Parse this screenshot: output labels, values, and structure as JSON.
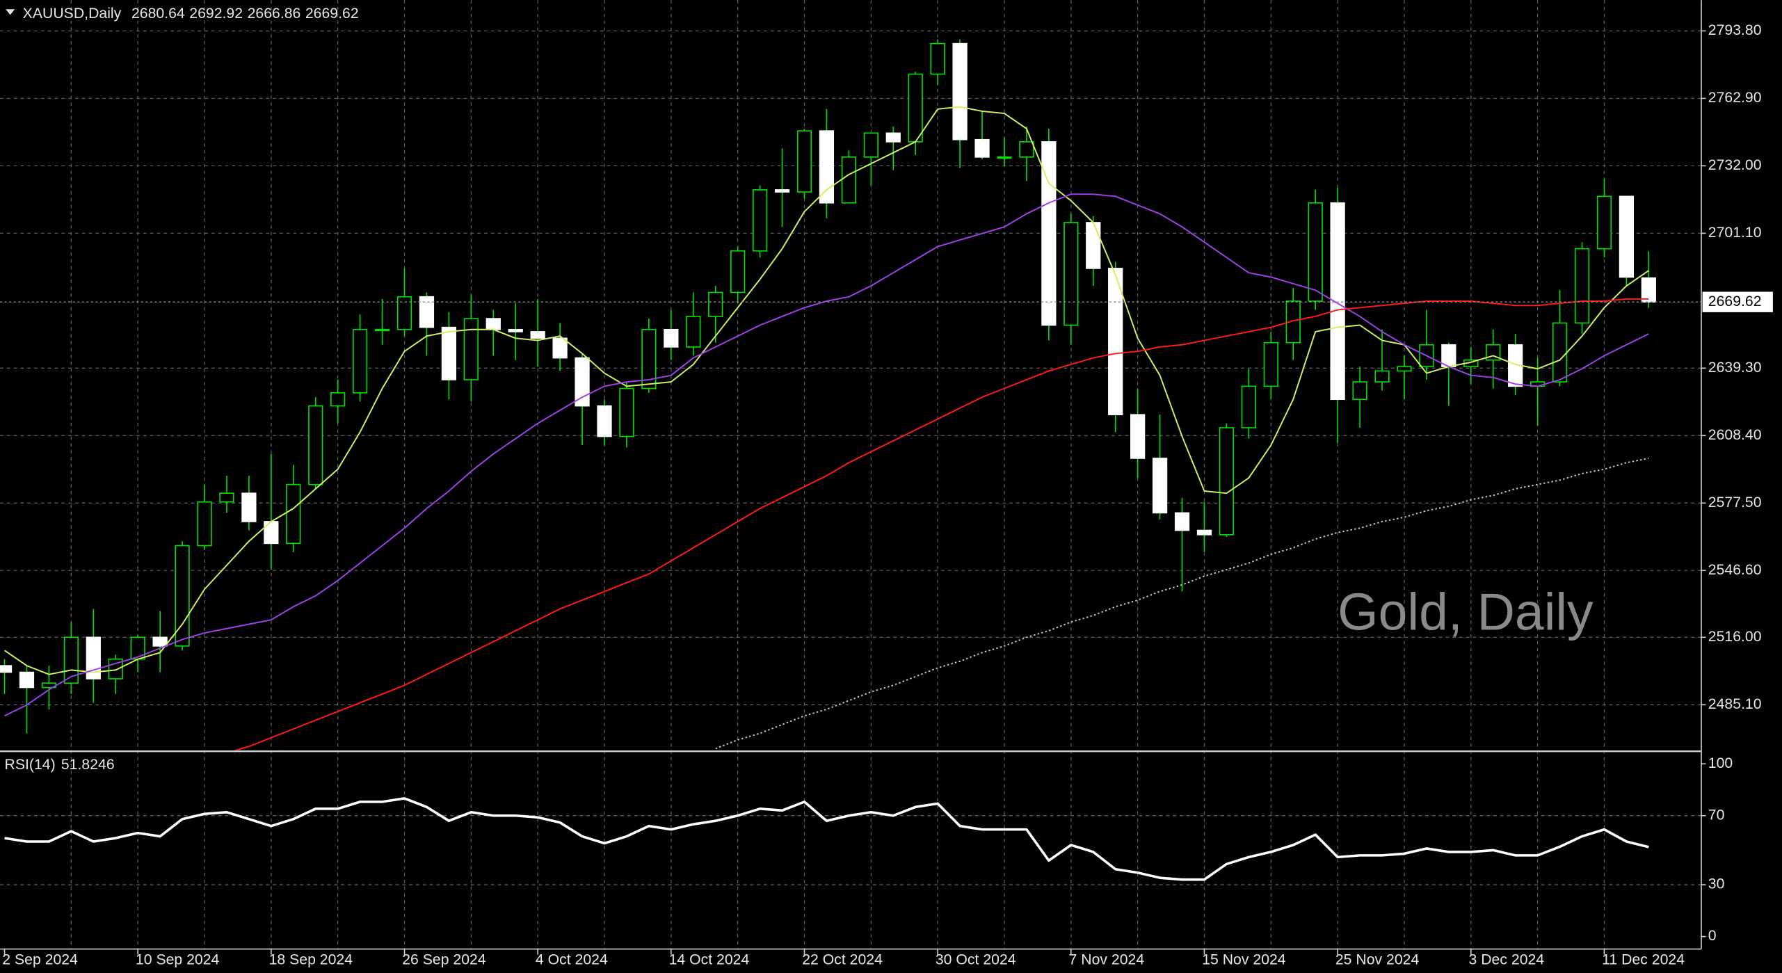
{
  "chart_data": [
    {
      "type": "candlestick",
      "symbol": "XAUUSD,Daily",
      "header_values": [
        2680.64,
        2692.92,
        2666.86,
        2669.62
      ],
      "watermark": "Gold, Daily",
      "categories": [
        "2 Sep 2024",
        null,
        null,
        null,
        null,
        null,
        "10 Sep 2024",
        null,
        null,
        null,
        null,
        null,
        "18 Sep 2024",
        null,
        null,
        null,
        null,
        null,
        "26 Sep 2024",
        null,
        null,
        null,
        null,
        null,
        "4 Oct 2024",
        null,
        null,
        null,
        null,
        null,
        "14 Oct 2024",
        null,
        null,
        null,
        null,
        null,
        "22 Oct 2024",
        null,
        null,
        null,
        null,
        null,
        "30 Oct 2024",
        null,
        null,
        null,
        null,
        null,
        "7 Nov 2024",
        null,
        null,
        null,
        null,
        null,
        "15 Nov 2024",
        null,
        null,
        null,
        null,
        null,
        "25 Nov 2024",
        null,
        null,
        null,
        null,
        null,
        "3 Dec 2024",
        null,
        null,
        null,
        null,
        null,
        "11 Dec 2024",
        null,
        null
      ],
      "open": [
        2503,
        2500,
        2493,
        2495,
        2516,
        2497,
        2506,
        2516,
        2512,
        2558,
        2578,
        2582,
        2569,
        2559,
        2586,
        2622,
        2628,
        2657,
        2657,
        2672,
        2658,
        2634,
        2662,
        2657,
        2656,
        2653,
        2644,
        2622,
        2608,
        2630,
        2657,
        2649,
        2663,
        2674,
        2693,
        2721,
        2720,
        2748,
        2715,
        2736,
        2747,
        2743,
        2774,
        2788,
        2744,
        2736,
        2736,
        2743,
        2659,
        2706,
        2685,
        2618,
        2598,
        2573,
        2565,
        2563,
        2612,
        2631,
        2651,
        2670,
        2715,
        2625,
        2633,
        2638,
        2640,
        2650,
        2640,
        2643,
        2650,
        2631,
        2633,
        2660,
        2694,
        2718,
        2680.64
      ],
      "high": [
        2506,
        2503,
        2503,
        2523,
        2529,
        2508,
        2517,
        2528,
        2560,
        2586,
        2590,
        2590,
        2600,
        2595,
        2626,
        2634,
        2664,
        2671,
        2685,
        2674,
        2665,
        2673,
        2666,
        2669,
        2671,
        2660,
        2646,
        2625,
        2633,
        2662,
        2666,
        2674,
        2677,
        2695,
        2723,
        2740,
        2749,
        2758,
        2739,
        2747,
        2750,
        2775,
        2790,
        2790,
        2757,
        2745,
        2750,
        2749,
        2710,
        2709,
        2688,
        2630,
        2618,
        2580,
        2578,
        2614,
        2639,
        2656,
        2676,
        2721,
        2722,
        2640,
        2657,
        2645,
        2666,
        2651,
        2649,
        2657,
        2655,
        2644,
        2675,
        2697,
        2726,
        2718,
        2692.92
      ],
      "low": [
        2490,
        2472,
        2483,
        2490,
        2486,
        2490,
        2500,
        2500,
        2510,
        2556,
        2573,
        2565,
        2547,
        2555,
        2584,
        2614,
        2624,
        2650,
        2654,
        2645,
        2625,
        2624,
        2645,
        2643,
        2640,
        2638,
        2604,
        2604,
        2603,
        2628,
        2643,
        2645,
        2651,
        2669,
        2690,
        2704,
        2717,
        2708,
        2715,
        2723,
        2730,
        2737,
        2769,
        2731,
        2735,
        2732,
        2725,
        2652,
        2650,
        2677,
        2610,
        2589,
        2570,
        2537,
        2555,
        2562,
        2607,
        2625,
        2643,
        2666,
        2605,
        2612,
        2629,
        2625,
        2634,
        2622,
        2632,
        2630,
        2627,
        2613,
        2631,
        2655,
        2690,
        2677,
        2666.86
      ],
      "close": [
        2500,
        2493,
        2495,
        2516,
        2497,
        2506,
        2516,
        2512,
        2558,
        2578,
        2582,
        2569,
        2559,
        2586,
        2622,
        2628,
        2657,
        2657,
        2672,
        2658,
        2634,
        2662,
        2657,
        2656,
        2653,
        2644,
        2622,
        2608,
        2630,
        2657,
        2649,
        2663,
        2674,
        2693,
        2721,
        2720,
        2748,
        2715,
        2736,
        2747,
        2743,
        2774,
        2788,
        2744,
        2736,
        2736,
        2743,
        2659,
        2706,
        2685,
        2618,
        2598,
        2573,
        2565,
        2563,
        2612,
        2631,
        2651,
        2670,
        2715,
        2625,
        2633,
        2638,
        2640,
        2650,
        2640,
        2643,
        2650,
        2631,
        2633,
        2660,
        2694,
        2718,
        2681,
        2669.62
      ],
      "up_color": "#00e000",
      "up_fill": "#000000",
      "down_fill": "#ffffff",
      "series": [
        {
          "color": "#d2f060",
          "style": "solid",
          "values": [
            2510,
            2503,
            2499,
            2501,
            2500,
            2501,
            2506,
            2509,
            2522,
            2538,
            2549,
            2560,
            2569,
            2575,
            2584,
            2593,
            2610,
            2630,
            2647,
            2654,
            2656,
            2657,
            2657,
            2653,
            2652,
            2654,
            2646,
            2637,
            2631,
            2632,
            2633,
            2641,
            2654,
            2667,
            2680,
            2694,
            2711,
            2721,
            2728,
            2733,
            2738,
            2743,
            2758,
            2759,
            2757,
            2756,
            2749,
            2724,
            2716,
            2706,
            2682,
            2653,
            2636,
            2608,
            2583,
            2582,
            2589,
            2604,
            2625,
            2656,
            2658,
            2659,
            2652,
            2650,
            2637,
            2640,
            2642,
            2645,
            2641,
            2639,
            2643,
            2654,
            2667,
            2677,
            2684
          ]
        },
        {
          "color": "#a040e8",
          "style": "solid",
          "values": [
            2480,
            2485,
            2492,
            2498,
            2501,
            2504,
            2507,
            2511,
            2515,
            2518,
            2520,
            2522,
            2524,
            2530,
            2535,
            2542,
            2550,
            2558,
            2566,
            2575,
            2583,
            2592,
            2600,
            2607,
            2614,
            2620,
            2626,
            2631,
            2633,
            2634,
            2636,
            2644,
            2649,
            2654,
            2659,
            2663,
            2667,
            2670,
            2672,
            2677,
            2683,
            2689,
            2695,
            2698,
            2701,
            2704,
            2710,
            2715,
            2719,
            2719,
            2718,
            2714,
            2710,
            2704,
            2697,
            2690,
            2683,
            2681,
            2678,
            2675,
            2669,
            2663,
            2656,
            2650,
            2645,
            2640,
            2636,
            2635,
            2632,
            2631,
            2634,
            2639,
            2645,
            2650,
            2655
          ]
        },
        {
          "color": "#ff1a1a",
          "style": "solid",
          "values": [
            null,
            null,
            null,
            null,
            null,
            null,
            null,
            null,
            null,
            null,
            2463,
            2466,
            2470,
            2474,
            2478,
            2482,
            2486,
            2490,
            2494,
            2499,
            2504,
            2509,
            2514,
            2519,
            2524,
            2529,
            2533,
            2537,
            2541,
            2545,
            2551,
            2557,
            2563,
            2569,
            2575,
            2580,
            2585,
            2590,
            2596,
            2601,
            2606,
            2611,
            2616,
            2621,
            2626,
            2630,
            2634,
            2638,
            2641,
            2644,
            2646,
            2647,
            2649,
            2650,
            2652,
            2654,
            2656,
            2658,
            2661,
            2663,
            2666,
            2667,
            2668,
            2669,
            2670,
            2670,
            2670,
            2669,
            2668,
            2668,
            2669,
            2670,
            2670,
            2671,
            2671
          ]
        },
        {
          "color": "#c8c8c8",
          "style": "dotted",
          "values": [
            null,
            null,
            null,
            null,
            null,
            null,
            null,
            null,
            null,
            null,
            null,
            null,
            null,
            null,
            null,
            null,
            null,
            null,
            null,
            null,
            null,
            null,
            null,
            null,
            null,
            null,
            null,
            null,
            null,
            null,
            null,
            null,
            2465,
            2469,
            2472,
            2476,
            2480,
            2483,
            2487,
            2491,
            2494,
            2498,
            2502,
            2505,
            2509,
            2512,
            2516,
            2519,
            2523,
            2526,
            2530,
            2533,
            2537,
            2540,
            2544,
            2547,
            2550,
            2554,
            2557,
            2561,
            2564,
            2566,
            2569,
            2571,
            2574,
            2576,
            2579,
            2581,
            2584,
            2586,
            2588,
            2591,
            2593,
            2596,
            2598
          ]
        }
      ],
      "price_line": true,
      "ylim": [
        2464.3,
        2807.9
      ],
      "yticks": [
        {
          "value": 2793.8,
          "label": "2793.80"
        },
        {
          "value": 2762.9,
          "label": "2762.90"
        },
        {
          "value": 2732,
          "label": "2732.00"
        },
        {
          "value": 2701.1,
          "label": "2701.10"
        },
        {
          "value": 2639.3,
          "label": "2639.30"
        },
        {
          "value": 2608.4,
          "label": "2608.40"
        },
        {
          "value": 2577.5,
          "label": "2577.50"
        },
        {
          "value": 2546.6,
          "label": "2546.60"
        },
        {
          "value": 2516,
          "label": "2516.00"
        },
        {
          "value": 2485.1,
          "label": "2485.10"
        }
      ],
      "grid": true
    },
    {
      "type": "line",
      "title": "RSI(14)",
      "value": 51.8246,
      "color": "#ffffff",
      "values": [
        57,
        55,
        55,
        61,
        55,
        57,
        60,
        58,
        68,
        71,
        72,
        68,
        64,
        68,
        74,
        74,
        78,
        78,
        80,
        75,
        67,
        72,
        70,
        70,
        69,
        66,
        58,
        54,
        58,
        64,
        62,
        65,
        67,
        70,
        74,
        73,
        78,
        67,
        70,
        72,
        70,
        75,
        77,
        64,
        62,
        62,
        62,
        44,
        53,
        49,
        39,
        37,
        34,
        33,
        33,
        42,
        46,
        49,
        53,
        59,
        46,
        47,
        47,
        48,
        51,
        49,
        49,
        50,
        47,
        47,
        52,
        58,
        62,
        55,
        51.8246
      ],
      "ylim": [
        -7.2,
        106.6
      ],
      "yticks": [
        100,
        70,
        30,
        0
      ],
      "levels": [
        70,
        30
      ]
    }
  ]
}
